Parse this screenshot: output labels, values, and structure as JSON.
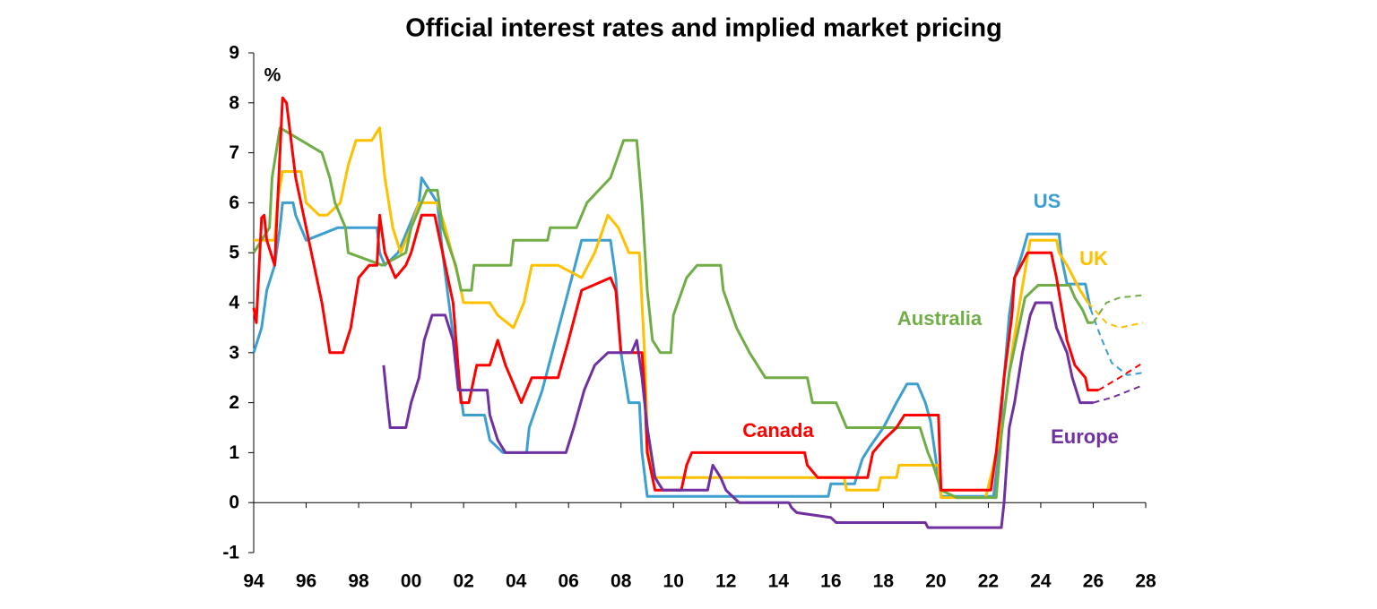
{
  "chart_data": {
    "type": "line",
    "title": "Official interest rates and implied market pricing",
    "y_label": "%",
    "xlim": [
      1994,
      2028
    ],
    "xticks": [
      {
        "value": 1994,
        "label": "94"
      },
      {
        "value": 1996,
        "label": "96"
      },
      {
        "value": 1998,
        "label": "98"
      },
      {
        "value": 2000,
        "label": "00"
      },
      {
        "value": 2002,
        "label": "02"
      },
      {
        "value": 2004,
        "label": "04"
      },
      {
        "value": 2006,
        "label": "06"
      },
      {
        "value": 2008,
        "label": "08"
      },
      {
        "value": 2010,
        "label": "10"
      },
      {
        "value": 2012,
        "label": "12"
      },
      {
        "value": 2014,
        "label": "14"
      },
      {
        "value": 2016,
        "label": "16"
      },
      {
        "value": 2018,
        "label": "18"
      },
      {
        "value": 2020,
        "label": "20"
      },
      {
        "value": 2022,
        "label": "22"
      },
      {
        "value": 2024,
        "label": "24"
      },
      {
        "value": 2026,
        "label": "26"
      },
      {
        "value": 2028,
        "label": "28"
      }
    ],
    "ylim": [
      -1,
      9
    ],
    "yticks": [
      -1,
      0,
      1,
      2,
      3,
      4,
      5,
      6,
      7,
      8,
      9
    ],
    "series": [
      {
        "name": "US",
        "color": "#3c9fcf",
        "line_style": "solid",
        "x": [
          1994,
          1994.3,
          1994.5,
          1994.8,
          1995.0,
          1995.1,
          1995.5,
          1995.6,
          1996.0,
          1997.2,
          1998.7,
          1998.8,
          1999.0,
          1999.5,
          1999.9,
          2000.3,
          2000.4,
          2001.0,
          2001.2,
          2001.5,
          2001.8,
          2002.0,
          2002.8,
          2003.0,
          2003.5,
          2004.4,
          2004.5,
          2005.0,
          2005.5,
          2006.0,
          2006.5,
          2007.6,
          2007.8,
          2008.0,
          2008.3,
          2008.7,
          2008.8,
          2009.0,
          2015.9,
          2016.0,
          2016.9,
          2017.2,
          2017.5,
          2018.0,
          2018.5,
          2018.9,
          2019.3,
          2019.6,
          2019.8,
          2020.2,
          2022.2,
          2022.4,
          2022.6,
          2022.8,
          2023.0,
          2023.3,
          2023.5,
          2024.7,
          2024.8,
          2025.0,
          2025.7,
          2025.9
        ],
        "values": [
          3.0,
          3.5,
          4.25,
          4.75,
          5.5,
          6.0,
          6.0,
          5.75,
          5.25,
          5.5,
          5.5,
          5.0,
          4.75,
          5.0,
          5.5,
          6.0,
          6.5,
          6.0,
          5.0,
          3.75,
          2.5,
          1.75,
          1.75,
          1.25,
          1.0,
          1.0,
          1.5,
          2.25,
          3.25,
          4.25,
          5.25,
          5.25,
          4.5,
          3.0,
          2.0,
          2.0,
          1.0,
          0.125,
          0.125,
          0.375,
          0.375,
          0.875,
          1.125,
          1.5,
          2.0,
          2.375,
          2.375,
          2.0,
          1.625,
          0.125,
          0.125,
          1.0,
          2.5,
          3.75,
          4.5,
          5.0,
          5.375,
          5.375,
          4.875,
          4.375,
          4.375,
          3.875
        ]
      },
      {
        "color": "#3c9fcf",
        "line_style": "dashed",
        "x": [
          2025.9,
          2026.3,
          2026.7,
          2027.3,
          2027.9
        ],
        "values": [
          3.875,
          3.3,
          2.8,
          2.55,
          2.6
        ]
      },
      {
        "name": "UK",
        "color": "#ffc000",
        "line_style": "solid",
        "x": [
          1994,
          1994.8,
          1994.9,
          1995.1,
          1995.8,
          1996.0,
          1996.5,
          1996.8,
          1997.3,
          1997.6,
          1997.9,
          1998.5,
          1998.8,
          1999.0,
          1999.3,
          1999.6,
          2000.0,
          2000.3,
          2001.0,
          2001.3,
          2001.8,
          2002.0,
          2003.0,
          2003.3,
          2003.9,
          2004.3,
          2004.6,
          2005.6,
          2006.5,
          2007.0,
          2007.5,
          2007.9,
          2008.3,
          2008.7,
          2008.9,
          2009.0,
          2009.2,
          2016.5,
          2016.6,
          2017.8,
          2017.9,
          2018.5,
          2018.6,
          2020.1,
          2020.2,
          2021.9,
          2022.2,
          2022.6,
          2022.9,
          2023.2,
          2023.6,
          2024.6,
          2024.7,
          2025.0,
          2025.5,
          2025.8
        ],
        "values": [
          5.25,
          5.25,
          6.0,
          6.625,
          6.625,
          6.0,
          5.75,
          5.75,
          6.0,
          6.75,
          7.25,
          7.25,
          7.5,
          6.5,
          5.5,
          5.0,
          5.5,
          6.0,
          6.0,
          5.5,
          4.5,
          4.0,
          4.0,
          3.75,
          3.5,
          4.0,
          4.75,
          4.75,
          4.5,
          5.0,
          5.75,
          5.5,
          5.0,
          5.0,
          3.0,
          1.5,
          0.5,
          0.5,
          0.25,
          0.25,
          0.5,
          0.5,
          0.75,
          0.75,
          0.1,
          0.1,
          0.75,
          1.75,
          3.0,
          4.0,
          5.25,
          5.25,
          5.0,
          4.75,
          4.25,
          4.0
        ]
      },
      {
        "color": "#ffc000",
        "line_style": "dashed",
        "x": [
          2025.8,
          2026.5,
          2027.0,
          2027.9
        ],
        "values": [
          4.0,
          3.6,
          3.5,
          3.6
        ]
      },
      {
        "name": "Australia",
        "color": "#70ad47",
        "line_style": "solid",
        "x": [
          1994,
          1994.6,
          1994.7,
          1995.0,
          1996.6,
          1996.9,
          1997.1,
          1997.5,
          1997.6,
          1998.9,
          1999.8,
          2000.0,
          2000.6,
          2001.0,
          2001.2,
          2001.7,
          2001.9,
          2002.3,
          2002.4,
          2003.8,
          2003.9,
          2005.2,
          2005.3,
          2006.3,
          2006.7,
          2007.6,
          2008.1,
          2008.6,
          2008.8,
          2009.0,
          2009.2,
          2009.5,
          2009.9,
          2010.0,
          2010.5,
          2010.9,
          2011.8,
          2011.9,
          2012.4,
          2012.9,
          2013.5,
          2015.1,
          2015.3,
          2016.2,
          2016.6,
          2019.4,
          2019.7,
          2019.9,
          2020.2,
          2020.8,
          2022.3,
          2022.5,
          2022.8,
          2023.0,
          2023.4,
          2023.9,
          2025.1,
          2025.3,
          2025.6,
          2025.8,
          2026.0
        ],
        "values": [
          5.0,
          5.5,
          6.5,
          7.5,
          7.0,
          6.5,
          6.0,
          5.5,
          5.0,
          4.75,
          5.0,
          5.5,
          6.25,
          6.25,
          5.5,
          4.75,
          4.25,
          4.25,
          4.75,
          4.75,
          5.25,
          5.25,
          5.5,
          5.5,
          6.0,
          6.5,
          7.25,
          7.25,
          6.0,
          4.25,
          3.25,
          3.0,
          3.0,
          3.75,
          4.5,
          4.75,
          4.75,
          4.25,
          3.5,
          3.0,
          2.5,
          2.5,
          2.0,
          2.0,
          1.5,
          1.5,
          1.0,
          0.75,
          0.25,
          0.1,
          0.1,
          1.35,
          2.6,
          3.1,
          4.1,
          4.35,
          4.35,
          4.1,
          3.85,
          3.6,
          3.6
        ]
      },
      {
        "color": "#70ad47",
        "line_style": "dashed",
        "x": [
          2026.0,
          2026.5,
          2027.0,
          2027.9
        ],
        "values": [
          3.6,
          4.0,
          4.1,
          4.15
        ]
      },
      {
        "name": "Canada",
        "color": "#ff0000",
        "line_style": "solid",
        "x": [
          1994,
          1994.1,
          1994.3,
          1994.4,
          1994.5,
          1994.8,
          1995.0,
          1995.1,
          1995.25,
          1995.6,
          1995.9,
          1996.3,
          1996.6,
          1996.9,
          1997.4,
          1997.7,
          1998.0,
          1998.4,
          1998.7,
          1998.8,
          1999.0,
          1999.4,
          1999.8,
          2000.0,
          2000.4,
          2000.9,
          2001.2,
          2001.6,
          2001.9,
          2002.2,
          2002.5,
          2003.0,
          2003.3,
          2003.6,
          2004.0,
          2004.2,
          2004.6,
          2005.6,
          2006.0,
          2006.5,
          2007.6,
          2007.8,
          2008.0,
          2008.8,
          2008.9,
          2009.0,
          2009.3,
          2010.3,
          2010.5,
          2010.7,
          2015.0,
          2015.1,
          2015.5,
          2017.4,
          2017.6,
          2018.0,
          2018.5,
          2018.8,
          2020.1,
          2020.2,
          2022.1,
          2022.3,
          2022.6,
          2022.9,
          2023.0,
          2023.5,
          2024.4,
          2024.6,
          2025.0,
          2025.3,
          2025.7,
          2025.8,
          2026.2
        ],
        "values": [
          3.9,
          3.6,
          5.7,
          5.75,
          5.25,
          4.75,
          7.0,
          8.1,
          8.0,
          6.5,
          5.75,
          4.75,
          4.0,
          3.0,
          3.0,
          3.5,
          4.5,
          4.75,
          4.75,
          5.75,
          5.0,
          4.5,
          4.75,
          5.0,
          5.75,
          5.75,
          5.0,
          4.0,
          2.0,
          2.0,
          2.75,
          2.75,
          3.25,
          2.75,
          2.25,
          2.0,
          2.5,
          2.5,
          3.25,
          4.25,
          4.5,
          4.25,
          3.0,
          3.0,
          2.25,
          1.0,
          0.25,
          0.25,
          0.75,
          1.0,
          1.0,
          0.75,
          0.5,
          0.5,
          1.0,
          1.25,
          1.5,
          1.75,
          1.75,
          0.25,
          0.25,
          1.0,
          2.5,
          3.75,
          4.5,
          5.0,
          5.0,
          4.5,
          3.25,
          2.75,
          2.5,
          2.25,
          2.25
        ]
      },
      {
        "color": "#ff0000",
        "line_style": "dashed",
        "x": [
          2026.2,
          2027.0,
          2027.9
        ],
        "values": [
          2.25,
          2.5,
          2.8
        ]
      },
      {
        "name": "Europe",
        "color": "#7030a0",
        "line_style": "solid",
        "x": [
          1998.95,
          1999.1,
          1999.2,
          1999.8,
          2000.0,
          2000.3,
          2000.5,
          2000.8,
          2001.3,
          2001.6,
          2001.8,
          2002.9,
          2003.0,
          2003.3,
          2003.6,
          2005.9,
          2006.2,
          2006.6,
          2007.0,
          2007.5,
          2008.4,
          2008.6,
          2008.8,
          2009.0,
          2009.3,
          2009.6,
          2011.3,
          2011.5,
          2011.8,
          2012.0,
          2012.5,
          2014.4,
          2014.5,
          2014.7,
          2016.0,
          2016.2,
          2019.6,
          2019.7,
          2022.5,
          2022.6,
          2022.8,
          2023.0,
          2023.3,
          2023.6,
          2023.8,
          2024.4,
          2024.6,
          2025.0,
          2025.2,
          2025.5,
          2026.0
        ],
        "values": [
          2.75,
          2.0,
          1.5,
          1.5,
          2.0,
          2.5,
          3.25,
          3.75,
          3.75,
          3.25,
          2.25,
          2.25,
          1.75,
          1.25,
          1.0,
          1.0,
          1.5,
          2.25,
          2.75,
          3.0,
          3.0,
          3.25,
          2.5,
          1.5,
          0.5,
          0.25,
          0.25,
          0.75,
          0.5,
          0.25,
          0.0,
          0.0,
          -0.1,
          -0.2,
          -0.3,
          -0.4,
          -0.4,
          -0.5,
          -0.5,
          0.0,
          1.5,
          2.0,
          3.0,
          3.75,
          4.0,
          4.0,
          3.5,
          3.0,
          2.5,
          2.0,
          2.0
        ]
      },
      {
        "color": "#7030a0",
        "line_style": "dashed",
        "x": [
          2026.0,
          2026.7,
          2027.9
        ],
        "values": [
          2.0,
          2.1,
          2.35
        ]
      }
    ]
  }
}
